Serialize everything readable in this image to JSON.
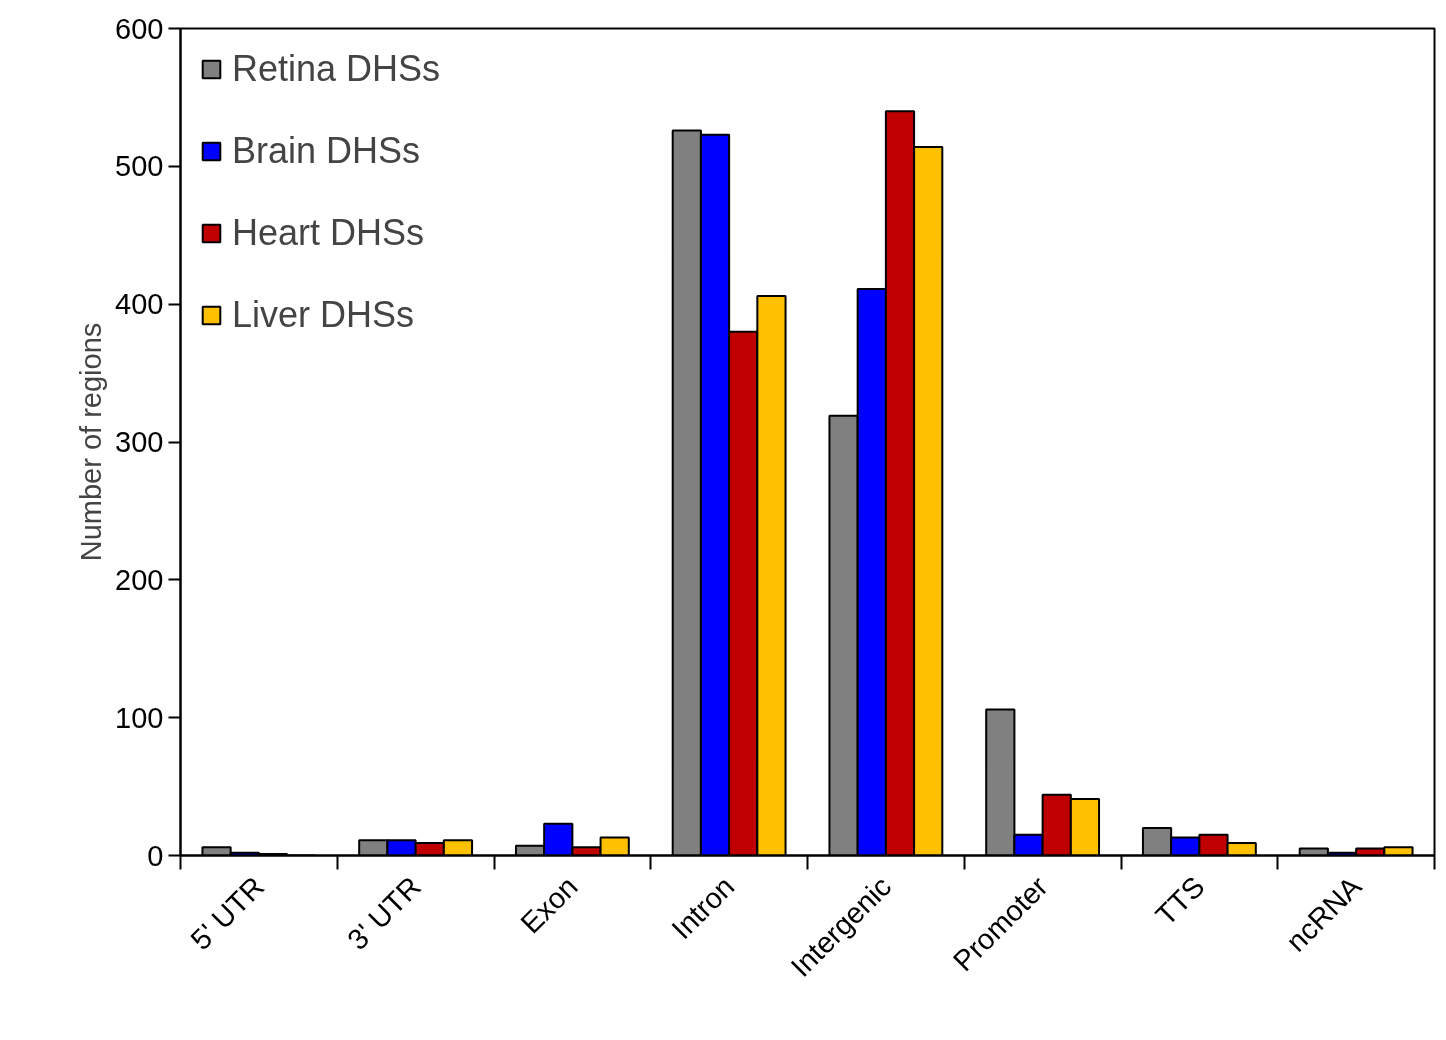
{
  "chart_data": {
    "type": "bar",
    "ylabel": "Number of regions",
    "categories": [
      "5' UTR",
      "3' UTR",
      "Exon",
      "Intron",
      "Intergenic",
      "Promoter",
      "TTS",
      "ncRNA"
    ],
    "series": [
      {
        "name": "Retina DHSs",
        "color": "#808080",
        "values": [
          6,
          11,
          7,
          526,
          319,
          106,
          20,
          5
        ]
      },
      {
        "name": "Brain DHSs",
        "color": "#0000ff",
        "values": [
          2,
          11,
          23,
          523,
          411,
          15,
          13,
          2
        ]
      },
      {
        "name": "Heart DHSs",
        "color": "#c00000",
        "values": [
          1,
          9,
          6,
          380,
          540,
          44,
          15,
          5
        ]
      },
      {
        "name": "Liver DHSs",
        "color": "#ffc000",
        "values": [
          0,
          11,
          13,
          406,
          514,
          41,
          9,
          6
        ]
      }
    ],
    "ylim": [
      0,
      600
    ],
    "yticks": [
      0,
      100,
      200,
      300,
      400,
      500,
      600
    ],
    "grid": false,
    "legend": "top left"
  }
}
